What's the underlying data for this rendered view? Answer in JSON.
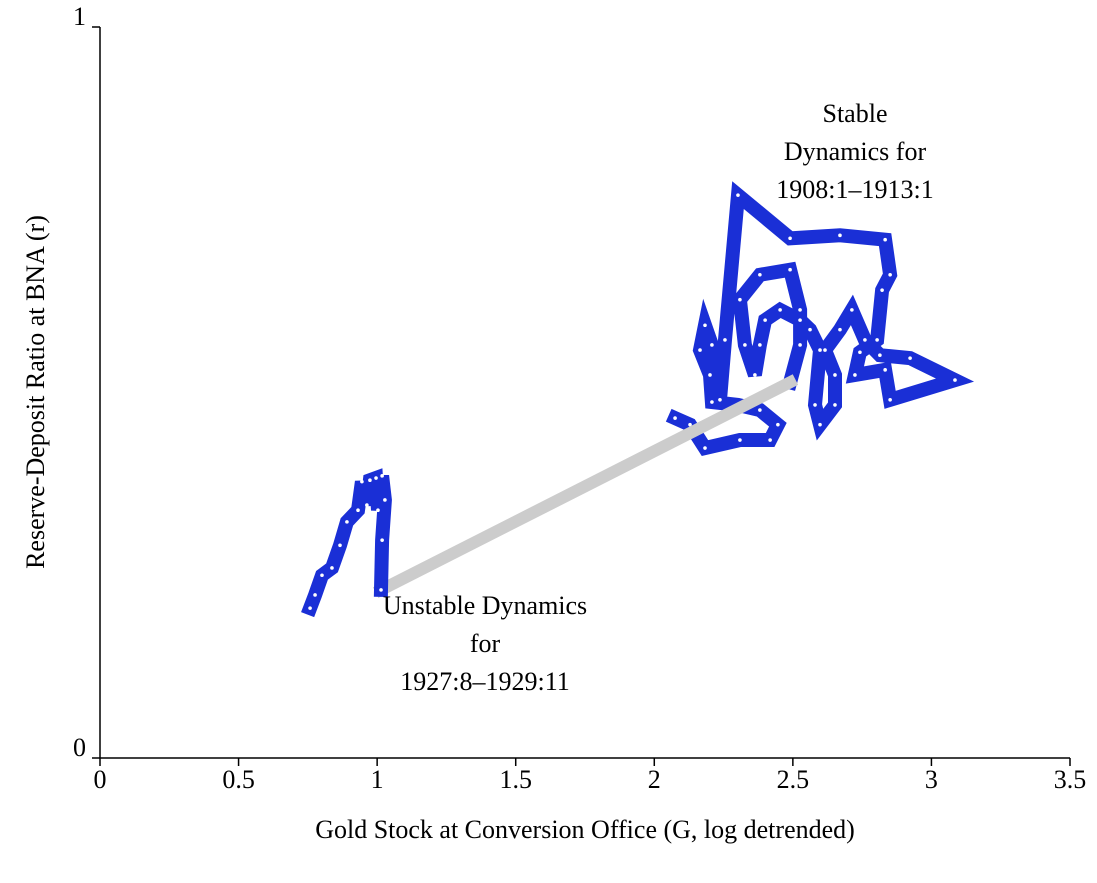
{
  "chart_data": {
    "type": "line",
    "x_label": "Gold Stock at Conversion Office (G, log detrended)",
    "y_label": "Reserve-Deposit Ratio at BNA (r)",
    "xlim": [
      0,
      3.5
    ],
    "xticks": [
      0,
      0.5,
      1,
      1.5,
      2,
      2.5,
      3,
      3.5
    ],
    "ylim": [
      0,
      1
    ],
    "yticks": [
      0,
      1
    ],
    "grid": false,
    "annotations": [
      [
        "Stable",
        "Dynamics for",
        "1908:1–1913:1"
      ],
      [
        "Unstable Dynamics",
        "for",
        "1927:8–1929:11"
      ]
    ],
    "series": [
      {
        "color": "#1a2fd6",
        "markers": true,
        "x": [
          2.075,
          2.129,
          2.183,
          2.309,
          2.418,
          2.446,
          2.381,
          2.302,
          2.208,
          2.201,
          2.165,
          2.183,
          2.208,
          2.237,
          2.255,
          2.302,
          2.49,
          2.67,
          2.833,
          2.851,
          2.822,
          2.804,
          2.742,
          2.724,
          2.833,
          2.851,
          3.085,
          2.923,
          2.814,
          2.76,
          2.713,
          2.67,
          2.616,
          2.652,
          2.652,
          2.598,
          2.58,
          2.598,
          2.562,
          2.526,
          2.454,
          2.4,
          2.381,
          2.363,
          2.327,
          2.309,
          2.381,
          2.49,
          2.526,
          2.526,
          2.49
        ],
        "values": [
          0.465,
          0.456,
          0.424,
          0.435,
          0.435,
          0.456,
          0.476,
          0.483,
          0.487,
          0.524,
          0.558,
          0.592,
          0.565,
          0.49,
          0.572,
          0.77,
          0.711,
          0.715,
          0.709,
          0.661,
          0.64,
          0.572,
          0.555,
          0.524,
          0.531,
          0.49,
          0.517,
          0.547,
          0.551,
          0.572,
          0.613,
          0.586,
          0.558,
          0.524,
          0.483,
          0.456,
          0.483,
          0.558,
          0.586,
          0.599,
          0.613,
          0.599,
          0.565,
          0.524,
          0.565,
          0.627,
          0.661,
          0.668,
          0.613,
          0.565,
          0.514
        ]
      },
      {
        "color": "#cccccc",
        "markers": false,
        "x": [
          2.49,
          1.014
        ],
        "values": [
          0.514,
          0.23
        ]
      },
      {
        "color": "#1a2fd6",
        "markers": true,
        "x": [
          1.014,
          1.018,
          1.028,
          1.018,
          1.003,
          0.996,
          0.974,
          0.963,
          0.945,
          0.931,
          0.891,
          0.866,
          0.837,
          0.801,
          0.776,
          0.758
        ],
        "values": [
          0.23,
          0.298,
          0.353,
          0.386,
          0.339,
          0.383,
          0.38,
          0.346,
          0.378,
          0.339,
          0.323,
          0.291,
          0.26,
          0.25,
          0.223,
          0.205
        ]
      }
    ]
  }
}
